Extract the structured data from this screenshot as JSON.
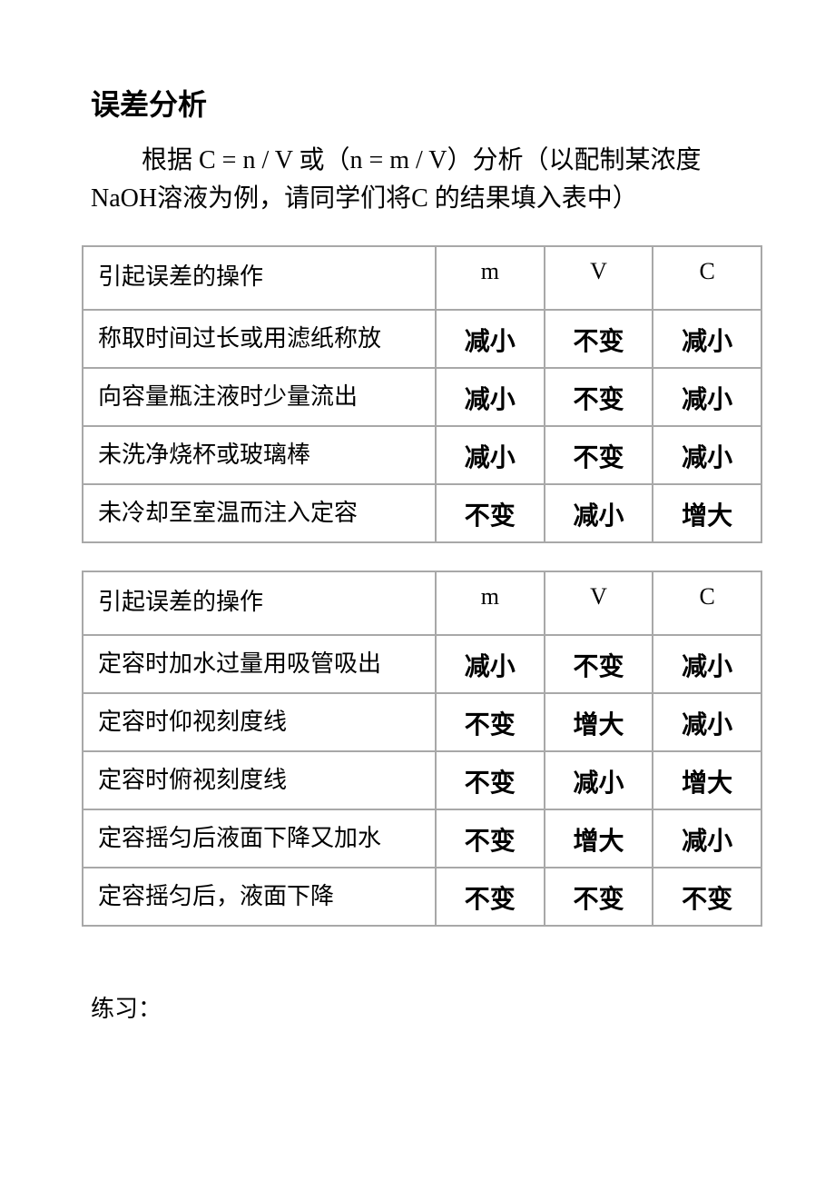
{
  "title": "误差分析",
  "description": "根据 C = n / V 或（n = m / V）分析（以配制某浓度NaOH溶液为例，请同学们将C 的结果填入表中）",
  "table1": {
    "header": {
      "op": "引起误差的操作",
      "m": "m",
      "v": "V",
      "c": "C"
    },
    "rows": [
      {
        "op": "称取时间过长或用滤纸称放",
        "m": "减小",
        "v": "不变",
        "c": "减小"
      },
      {
        "op": "向容量瓶注液时少量流出",
        "m": "减小",
        "v": "不变",
        "c": "减小"
      },
      {
        "op": "未洗净烧杯或玻璃棒",
        "m": "减小",
        "v": "不变",
        "c": "减小"
      },
      {
        "op": "未冷却至室温而注入定容",
        "m": "不变",
        "v": "减小",
        "c": "增大"
      }
    ]
  },
  "table2": {
    "header": {
      "op": "引起误差的操作",
      "m": "m",
      "v": "V",
      "c": "C"
    },
    "rows": [
      {
        "op": "定容时加水过量用吸管吸出",
        "m": "减小",
        "v": "不变",
        "c": "减小"
      },
      {
        "op": "定容时仰视刻度线",
        "m": "不变",
        "v": "增大",
        "c": "减小"
      },
      {
        "op": "定容时俯视刻度线",
        "m": "不变",
        "v": "减小",
        "c": "增大"
      },
      {
        "op": "定容摇匀后液面下降又加水",
        "m": "不变",
        "v": "增大",
        "c": "减小"
      },
      {
        "op": "定容摇匀后，液面下降",
        "m": "不变",
        "v": "不变",
        "c": "不变"
      }
    ]
  },
  "practice": "练习："
}
